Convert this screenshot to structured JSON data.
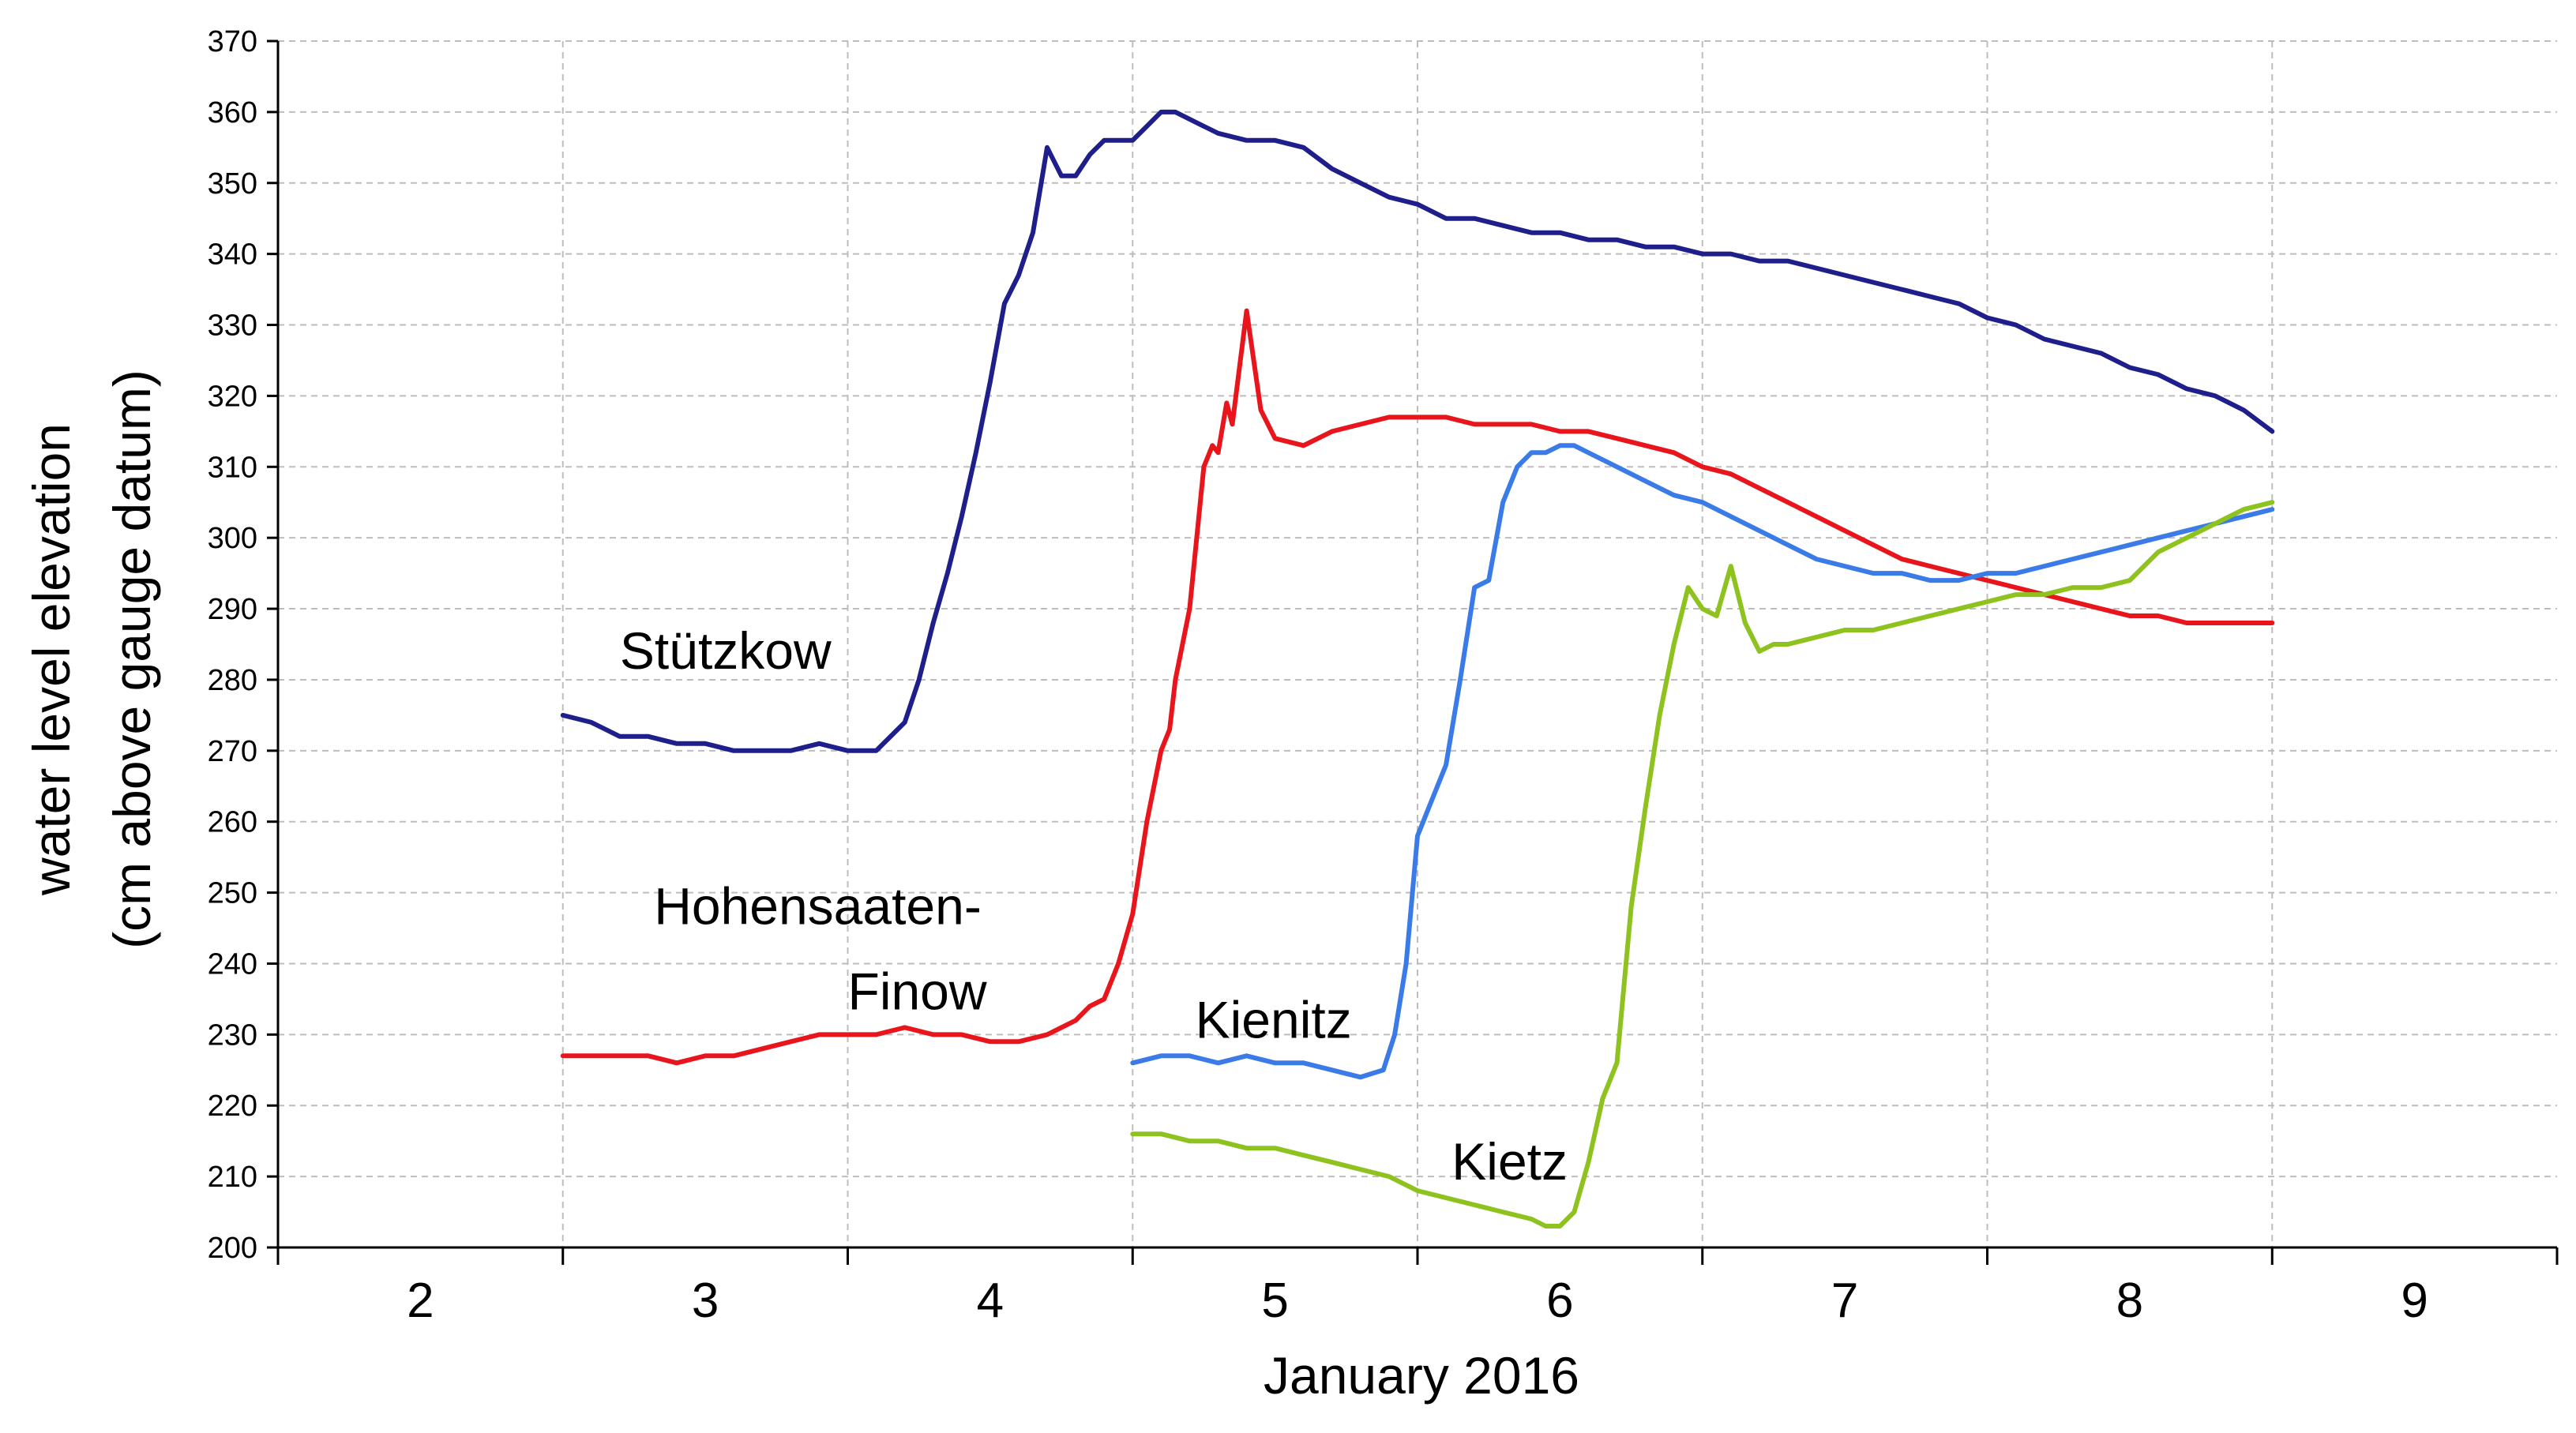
{
  "chart_data": {
    "type": "line",
    "xlabel": "January 2016",
    "ylabel_line1": "water level elevation",
    "ylabel_line2": "(cm above gauge datum)",
    "xlim": [
      1.5,
      9.5
    ],
    "ylim": [
      200,
      370
    ],
    "yticks": [
      200,
      210,
      220,
      230,
      240,
      250,
      260,
      270,
      280,
      290,
      300,
      310,
      320,
      330,
      340,
      350,
      360,
      370
    ],
    "xticks": [
      2,
      3,
      4,
      5,
      6,
      7,
      8,
      9
    ],
    "grid": true,
    "series": [
      {
        "name": "Stützkow",
        "label_lines": [
          "Stützkow"
        ],
        "color": "#1f1f8c",
        "x": [
          2.5,
          2.6,
          2.7,
          2.8,
          2.9,
          3.0,
          3.1,
          3.2,
          3.3,
          3.4,
          3.5,
          3.6,
          3.7,
          3.75,
          3.8,
          3.85,
          3.9,
          3.95,
          4.0,
          4.05,
          4.1,
          4.15,
          4.2,
          4.25,
          4.3,
          4.35,
          4.4,
          4.45,
          4.5,
          4.55,
          4.6,
          4.65,
          4.7,
          4.75,
          4.8,
          4.9,
          5.0,
          5.1,
          5.2,
          5.3,
          5.4,
          5.5,
          5.6,
          5.7,
          5.8,
          5.9,
          6.0,
          6.1,
          6.2,
          6.3,
          6.4,
          6.5,
          6.6,
          6.7,
          6.8,
          6.9,
          7.0,
          7.1,
          7.2,
          7.3,
          7.4,
          7.5,
          7.6,
          7.7,
          7.8,
          7.9,
          8.0,
          8.1,
          8.2,
          8.3,
          8.4,
          8.5
        ],
        "y": [
          275,
          274,
          272,
          272,
          271,
          271,
          270,
          270,
          270,
          271,
          270,
          270,
          274,
          280,
          288,
          295,
          303,
          312,
          322,
          333,
          337,
          343,
          355,
          351,
          351,
          354,
          356,
          356,
          356,
          358,
          360,
          360,
          359,
          358,
          357,
          356,
          356,
          355,
          352,
          350,
          348,
          347,
          345,
          345,
          344,
          343,
          343,
          342,
          342,
          341,
          341,
          340,
          340,
          339,
          339,
          338,
          337,
          336,
          335,
          334,
          333,
          331,
          330,
          328,
          327,
          326,
          324,
          323,
          321,
          320,
          318,
          315
        ]
      },
      {
        "name": "Hohensaaten-Finow",
        "label_lines": [
          "Hohensaaten-",
          "Finow"
        ],
        "color": "#e8161c",
        "x": [
          2.5,
          2.6,
          2.7,
          2.8,
          2.9,
          3.0,
          3.1,
          3.2,
          3.3,
          3.4,
          3.5,
          3.6,
          3.7,
          3.8,
          3.9,
          4.0,
          4.1,
          4.2,
          4.3,
          4.35,
          4.4,
          4.45,
          4.5,
          4.55,
          4.6,
          4.63,
          4.65,
          4.7,
          4.75,
          4.78,
          4.8,
          4.83,
          4.85,
          4.9,
          4.95,
          5.0,
          5.1,
          5.2,
          5.3,
          5.4,
          5.5,
          5.6,
          5.7,
          5.8,
          5.9,
          6.0,
          6.1,
          6.2,
          6.3,
          6.4,
          6.5,
          6.6,
          6.7,
          6.8,
          6.9,
          7.0,
          7.1,
          7.2,
          7.3,
          7.4,
          7.5,
          7.6,
          7.7,
          7.8,
          7.9,
          8.0,
          8.1,
          8.2,
          8.3,
          8.4,
          8.5
        ],
        "y": [
          227,
          227,
          227,
          227,
          226,
          227,
          227,
          228,
          229,
          230,
          230,
          230,
          231,
          230,
          230,
          229,
          229,
          230,
          232,
          234,
          235,
          240,
          247,
          260,
          270,
          273,
          280,
          290,
          310,
          313,
          312,
          319,
          316,
          332,
          318,
          314,
          313,
          315,
          316,
          317,
          317,
          317,
          316,
          316,
          316,
          315,
          315,
          314,
          313,
          312,
          310,
          309,
          307,
          305,
          303,
          301,
          299,
          297,
          296,
          295,
          294,
          293,
          292,
          291,
          290,
          289,
          289,
          288,
          288,
          288,
          288
        ]
      },
      {
        "name": "Kienitz",
        "label_lines": [
          "Kienitz"
        ],
        "color": "#3a7be8",
        "x": [
          4.5,
          4.6,
          4.7,
          4.8,
          4.9,
          5.0,
          5.1,
          5.2,
          5.3,
          5.38,
          5.42,
          5.46,
          5.5,
          5.55,
          5.6,
          5.65,
          5.7,
          5.75,
          5.8,
          5.85,
          5.9,
          5.95,
          6.0,
          6.05,
          6.1,
          6.2,
          6.3,
          6.4,
          6.5,
          6.6,
          6.7,
          6.8,
          6.9,
          7.0,
          7.1,
          7.2,
          7.3,
          7.4,
          7.5,
          7.6,
          7.7,
          7.8,
          7.9,
          8.0,
          8.1,
          8.2,
          8.3,
          8.4,
          8.5
        ],
        "y": [
          226,
          227,
          227,
          226,
          227,
          226,
          226,
          225,
          224,
          225,
          230,
          240,
          258,
          263,
          268,
          280,
          293,
          294,
          305,
          310,
          312,
          312,
          313,
          313,
          312,
          310,
          308,
          306,
          305,
          303,
          301,
          299,
          297,
          296,
          295,
          295,
          294,
          294,
          295,
          295,
          296,
          297,
          298,
          299,
          300,
          301,
          302,
          303,
          304
        ]
      },
      {
        "name": "Kietz",
        "label_lines": [
          "Kietz"
        ],
        "color": "#8dc21f",
        "x": [
          4.5,
          4.6,
          4.7,
          4.8,
          4.9,
          5.0,
          5.1,
          5.2,
          5.3,
          5.4,
          5.5,
          5.6,
          5.7,
          5.8,
          5.9,
          5.95,
          6.0,
          6.05,
          6.1,
          6.15,
          6.2,
          6.25,
          6.3,
          6.35,
          6.4,
          6.45,
          6.5,
          6.55,
          6.6,
          6.65,
          6.7,
          6.75,
          6.8,
          6.9,
          7.0,
          7.1,
          7.2,
          7.3,
          7.4,
          7.5,
          7.6,
          7.7,
          7.8,
          7.9,
          8.0,
          8.1,
          8.2,
          8.3,
          8.4,
          8.5
        ],
        "y": [
          216,
          216,
          215,
          215,
          214,
          214,
          213,
          212,
          211,
          210,
          208,
          207,
          206,
          205,
          204,
          203,
          203,
          205,
          212,
          221,
          226,
          248,
          262,
          275,
          285,
          293,
          290,
          289,
          296,
          288,
          284,
          285,
          285,
          286,
          287,
          287,
          288,
          289,
          290,
          291,
          292,
          292,
          293,
          293,
          294,
          298,
          300,
          302,
          304,
          305
        ]
      }
    ]
  }
}
